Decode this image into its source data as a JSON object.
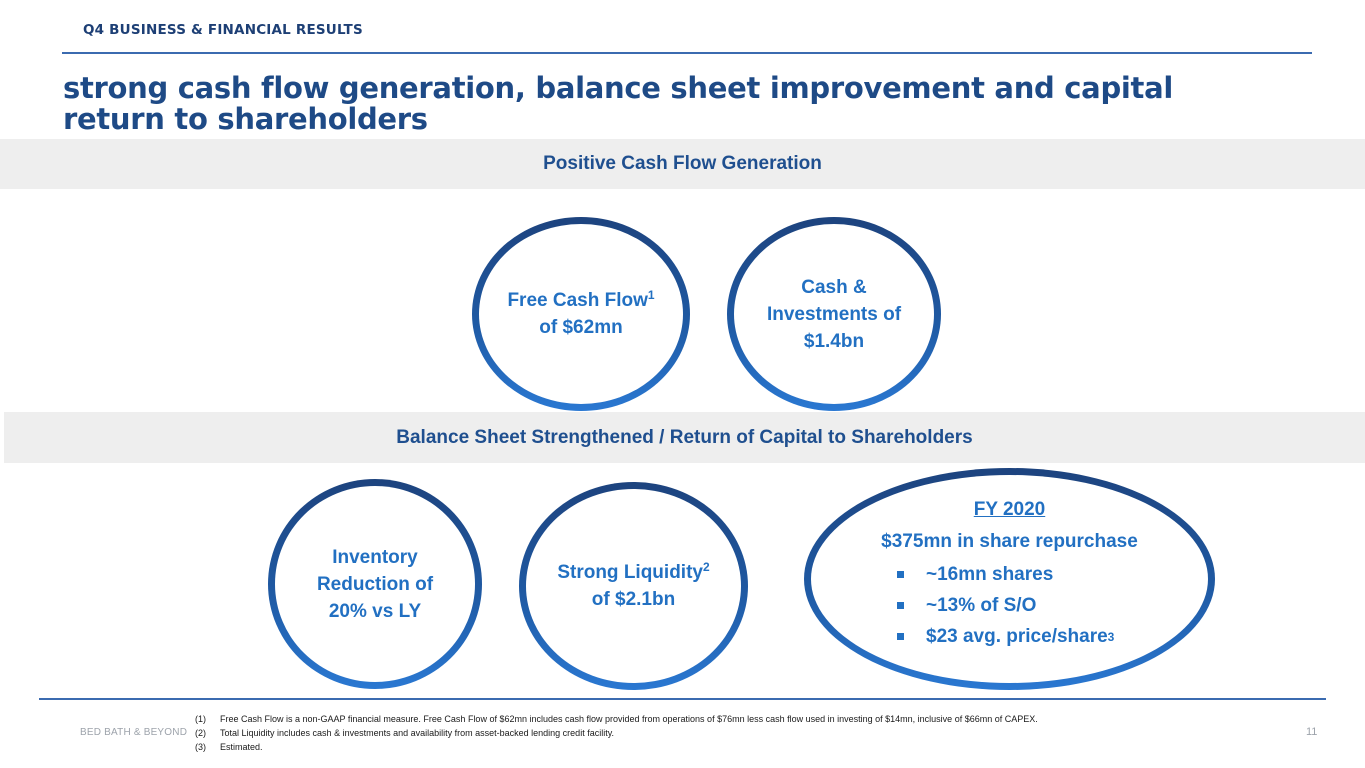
{
  "header": {
    "eyebrow": "Q4 BUSINESS & FINANCIAL RESULTS",
    "headline": "strong cash flow generation, balance sheet improvement and capital return to shareholders"
  },
  "sections": {
    "cash_flow_title": "Positive Cash Flow Generation",
    "balance_title": "Balance Sheet Strengthened / Return of Capital to Shareholders"
  },
  "circles": {
    "free_cash_flow": {
      "line1": "Free Cash Flow",
      "sup": "1",
      "line2": "of $62mn"
    },
    "cash_investments": {
      "line1": "Cash &",
      "line2": "Investments of",
      "line3": "$1.4bn"
    },
    "inventory": {
      "line1": "Inventory",
      "line2": "Reduction of",
      "line3": "20% vs LY"
    },
    "liquidity": {
      "line1": "Strong Liquidity",
      "sup": "2",
      "line2": "of $2.1bn"
    },
    "fy2020": {
      "title": "FY 2020",
      "subtitle": "$375mn in share repurchase",
      "bullets": [
        "~16mn shares",
        "~13% of S/O",
        "$23 avg. price/share"
      ],
      "bullet3_sup": "3"
    }
  },
  "footer": {
    "brand": "BED BATH & BEYOND",
    "page_number": "11",
    "notes": [
      {
        "num": "(1)",
        "text": "Free Cash Flow is a non-GAAP financial measure. Free Cash Flow of $62mn includes cash flow provided from operations of $76mn less cash flow used in investing of $14mn, inclusive of $66mn of  CAPEX."
      },
      {
        "num": "(2)",
        "text": "Total Liquidity includes cash & investments and availability from asset-backed lending credit facility."
      },
      {
        "num": "(3)",
        "text": " Estimated."
      }
    ]
  },
  "colors": {
    "navy": "#1e4a86",
    "accent_blue": "#2270c2",
    "band_gray": "#eeeeee",
    "rule_blue": "#3b6bb0"
  }
}
